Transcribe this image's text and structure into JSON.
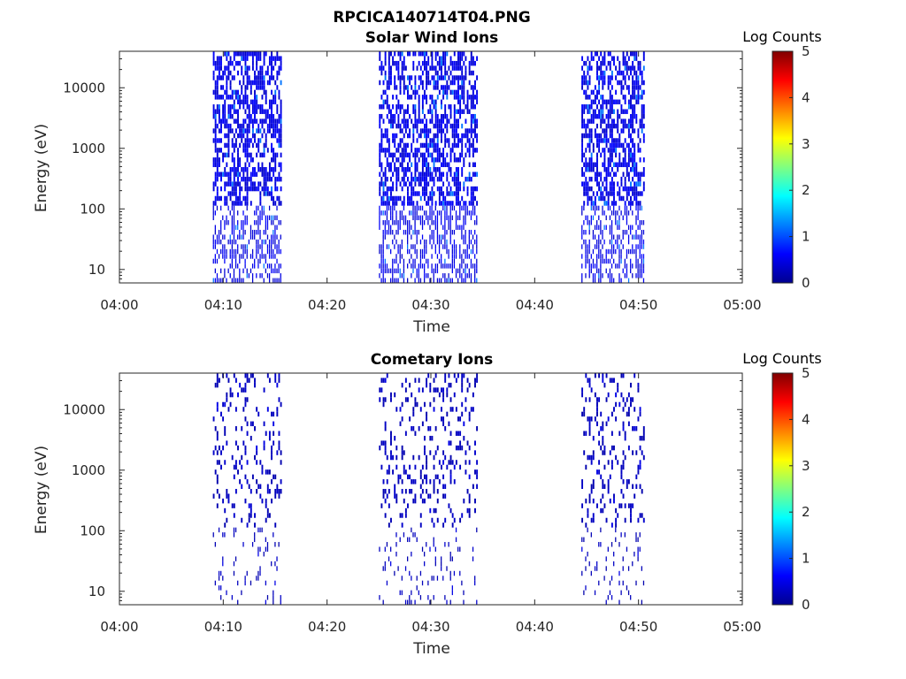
{
  "figure_title": "RPCICA140714T04.PNG",
  "colorbar": {
    "title": "Log Counts",
    "ticks": [
      "0",
      "1",
      "2",
      "3",
      "4",
      "5"
    ],
    "range": [
      0,
      5
    ],
    "colormap": "jet"
  },
  "chart_data": [
    {
      "type": "heatmap",
      "title": "Solar Wind Ions",
      "xlabel": "Time",
      "ylabel": "Energy (eV)",
      "x_ticks": [
        "04:00",
        "04:10",
        "04:20",
        "04:30",
        "04:40",
        "04:50",
        "05:00"
      ],
      "xlim": [
        "04:00",
        "05:00"
      ],
      "y_scale": "log",
      "y_ticks": [
        "10",
        "100",
        "1000",
        "10000"
      ],
      "ylim": [
        6,
        40000
      ],
      "grid": false,
      "value": "Log Counts",
      "data_intervals": [
        [
          "04:09",
          "04:15.5"
        ],
        [
          "04:25",
          "04:34.5"
        ],
        [
          "04:44.5",
          "04:50.5"
        ]
      ],
      "typical_value": 0.5,
      "peak_value": 1.2
    },
    {
      "type": "heatmap",
      "title": "Cometary Ions",
      "xlabel": "Time",
      "ylabel": "Energy (eV)",
      "x_ticks": [
        "04:00",
        "04:10",
        "04:20",
        "04:30",
        "04:40",
        "04:50",
        "05:00"
      ],
      "xlim": [
        "04:00",
        "05:00"
      ],
      "y_scale": "log",
      "y_ticks": [
        "10",
        "100",
        "1000",
        "10000"
      ],
      "ylim": [
        6,
        40000
      ],
      "grid": false,
      "value": "Log Counts",
      "data_intervals": [
        [
          "04:09",
          "04:15.5"
        ],
        [
          "04:25",
          "04:34.5"
        ],
        [
          "04:44.5",
          "04:50.5"
        ]
      ],
      "typical_value": 0.3,
      "peak_value": 0.5
    }
  ]
}
